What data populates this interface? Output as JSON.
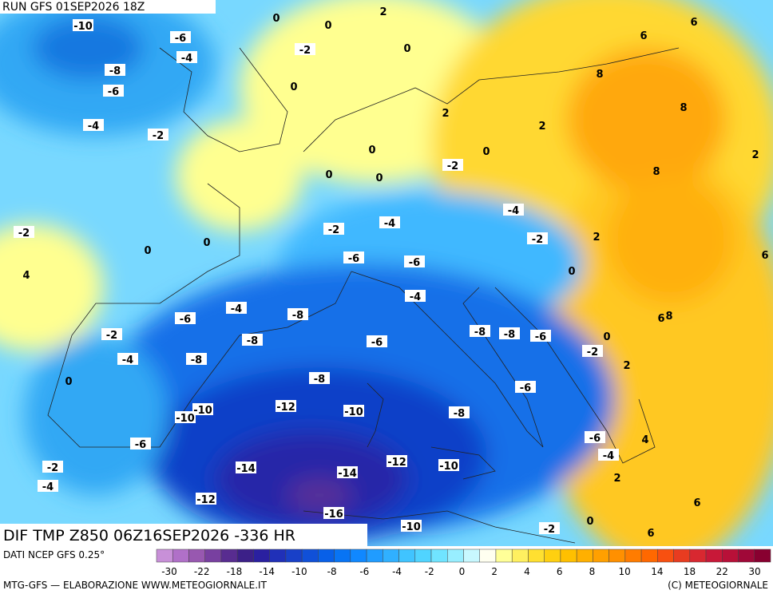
{
  "header": {
    "run": "RUN GFS 01SEP2026 18Z"
  },
  "map": {
    "title": "DIF TMP Z850 06Z16SEP2026 -336 HR",
    "contour_labels": [
      -10,
      -6,
      -4,
      -8,
      -6,
      -4,
      -2,
      0,
      0,
      2,
      -2,
      0,
      0,
      2,
      0,
      0,
      0,
      -2,
      0,
      2,
      8,
      6,
      6,
      8,
      2,
      8,
      2,
      6,
      0,
      8,
      6,
      0,
      -2,
      2,
      -4,
      -2,
      -4,
      -2,
      0,
      0,
      -2,
      4,
      -6,
      -6,
      -4,
      -4,
      -8,
      -6,
      -2,
      -8,
      -4,
      -8,
      -6,
      -8,
      -8,
      -6,
      -8,
      0,
      -6,
      -10,
      -10,
      -12,
      -10,
      -8,
      -6,
      -6,
      4,
      -4,
      -12,
      -10,
      -14,
      -14,
      -2,
      -4,
      2,
      -12,
      -16,
      6,
      -10,
      -2,
      0,
      6
    ]
  },
  "legend": {
    "source": "DATI NCEP GFS 0.25°",
    "ticks": [
      -30,
      -22,
      -18,
      -14,
      -10,
      -8,
      -6,
      -4,
      -2,
      0,
      2,
      4,
      6,
      8,
      10,
      14,
      18,
      22,
      30
    ],
    "colors": [
      "#c890d8",
      "#b070c8",
      "#9858b0",
      "#7840a0",
      "#582c90",
      "#3c2088",
      "#2a20a0",
      "#2030b8",
      "#1840c8",
      "#1050d8",
      "#0860e8",
      "#0874f4",
      "#1088ff",
      "#209cff",
      "#30b0ff",
      "#40c4ff",
      "#50d4ff",
      "#70e4ff",
      "#98eeff",
      "#c8f8ff",
      "#fffff0",
      "#ffff98",
      "#fff060",
      "#ffe030",
      "#ffd010",
      "#ffc000",
      "#ffb000",
      "#ffa000",
      "#ff9000",
      "#ff7c00",
      "#ff6800",
      "#f85010",
      "#e83c20",
      "#d82830",
      "#c81838",
      "#b81038",
      "#a00838",
      "#880030"
    ]
  },
  "footer": {
    "left": "MTG-GFS — ELABORAZIONE WWW.METEOGIORNALE.IT",
    "right": "(C) METEOGIORNALE"
  }
}
